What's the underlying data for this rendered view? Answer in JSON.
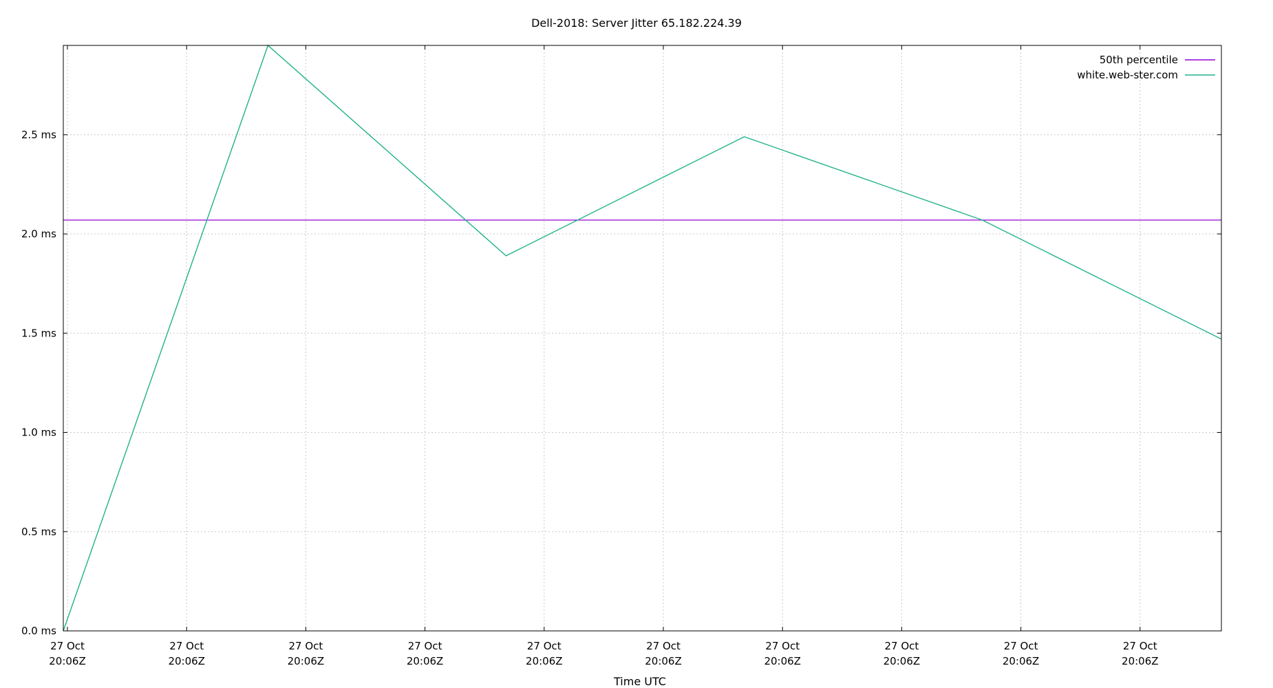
{
  "chart_data": {
    "type": "line",
    "title": "Dell-2018: Server Jitter 65.182.224.39",
    "xlabel": "Time UTC",
    "ylabel": "",
    "ylim": [
      0,
      2.95
    ],
    "y_ticks": [
      {
        "value": 0.0,
        "label": "0.0 ms"
      },
      {
        "value": 0.5,
        "label": "0.5 ms"
      },
      {
        "value": 1.0,
        "label": "1.0 ms"
      },
      {
        "value": 1.5,
        "label": "1.5 ms"
      },
      {
        "value": 2.0,
        "label": "2.0 ms"
      },
      {
        "value": 2.5,
        "label": "2.5 ms"
      }
    ],
    "x_ticks": [
      {
        "line1": "27 Oct",
        "line2": "20:06Z"
      },
      {
        "line1": "27 Oct",
        "line2": "20:06Z"
      },
      {
        "line1": "27 Oct",
        "line2": "20:06Z"
      },
      {
        "line1": "27 Oct",
        "line2": "20:06Z"
      },
      {
        "line1": "27 Oct",
        "line2": "20:06Z"
      },
      {
        "line1": "27 Oct",
        "line2": "20:06Z"
      },
      {
        "line1": "27 Oct",
        "line2": "20:06Z"
      },
      {
        "line1": "27 Oct",
        "line2": "20:06Z"
      },
      {
        "line1": "27 Oct",
        "line2": "20:06Z"
      },
      {
        "line1": "27 Oct",
        "line2": "20:06Z"
      }
    ],
    "grid": true,
    "legend_position": "top-right",
    "series": [
      {
        "name": "50th percentile",
        "color": "#9400d3",
        "style": "hline",
        "value": 2.07
      },
      {
        "name": "white.web-ster.com",
        "color": "#20b18a",
        "style": "line",
        "points": [
          {
            "t": 0.0,
            "y": 0.0
          },
          {
            "t": 0.1767,
            "y": 2.95
          },
          {
            "t": 0.3823,
            "y": 1.89
          },
          {
            "t": 0.588,
            "y": 2.49
          },
          {
            "t": 0.7936,
            "y": 2.07
          },
          {
            "t": 1.0,
            "y": 1.47
          }
        ]
      }
    ]
  }
}
